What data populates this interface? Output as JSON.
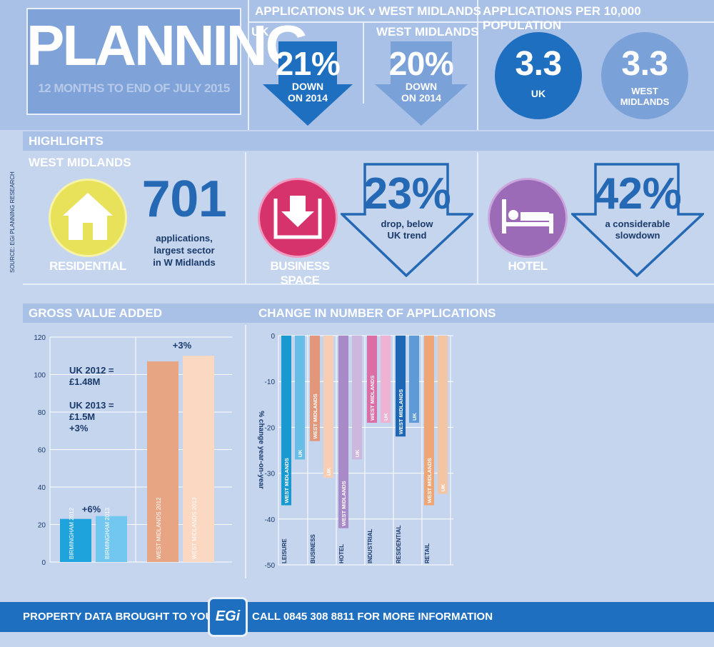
{
  "title": {
    "main": "PLANNING",
    "sub": "12 MONTHS TO END OF JULY 2015"
  },
  "applications_uk_v_wm": {
    "heading": "APPLICATIONS UK v WEST MIDLANDS",
    "uk": {
      "label": "UK",
      "value": "21%",
      "line1": "DOWN",
      "line2": "ON 2014"
    },
    "wm": {
      "label": "WEST MIDLANDS",
      "value": "20%",
      "line1": "DOWN",
      "line2": "ON 2014"
    }
  },
  "per_10000": {
    "heading": "APPLICATIONS PER 10,000 POPULATION",
    "uk": {
      "value": "3.3",
      "label": "UK"
    },
    "wm": {
      "value": "3.3",
      "label1": "WEST",
      "label2": "MIDLANDS"
    }
  },
  "highlights": {
    "heading": "HIGHLIGHTS",
    "region": "WEST MIDLANDS",
    "source": "SOURCE: EGi PLANNING RESEARCH",
    "residential": {
      "label": "RESIDENTIAL",
      "value": "701",
      "l1": "applications,",
      "l2": "largest sector",
      "l3": "in W Midlands"
    },
    "business": {
      "label": "BUSINESS SPACE",
      "value": "23%",
      "l1": "drop, below",
      "l2": "UK trend"
    },
    "hotel": {
      "label": "HOTEL",
      "value": "42%",
      "l1": "a considerable",
      "l2": "slowdown"
    }
  },
  "gva": {
    "heading": "GROSS VALUE ADDED",
    "notes": {
      "a1": "UK 2012 =",
      "a2": "£1.48M",
      "b1": "UK 2013 =",
      "b2": "£1.5M",
      "b3": "+3%"
    }
  },
  "change": {
    "heading": "CHANGE IN NUMBER OF APPLICATIONS",
    "ylabel": "% change year-on-year"
  },
  "footer": {
    "left": "PROPERTY DATA BROUGHT TO YOU BY",
    "logo": "EGi",
    "right": "CALL 0845 308 8811 FOR MORE INFORMATION"
  },
  "colors": {
    "accent": "#1e6fc0",
    "residential": "#e8e25a",
    "business": "#d6336c",
    "hotel": "#9b6bb8"
  },
  "chart_data": [
    {
      "type": "bar",
      "title": "GROSS VALUE ADDED",
      "ylim": [
        0,
        120
      ],
      "yticks": [
        0,
        20,
        40,
        60,
        80,
        100,
        120
      ],
      "bars": [
        {
          "label": "BIRMINGHAM 2012",
          "value": 23,
          "color": "#1ea3dc"
        },
        {
          "label": "BIRMINGHAM 2013",
          "value": 24.5,
          "color": "#72c7f0"
        },
        {
          "label": "WEST MIDLANDS 2012",
          "value": 107,
          "color": "#e8a584"
        },
        {
          "label": "WEST MIDLANDS 2013",
          "value": 110,
          "color": "#fbd8c2"
        }
      ],
      "annotations": [
        "+6%",
        "+3%"
      ]
    },
    {
      "type": "bar",
      "title": "CHANGE IN NUMBER OF APPLICATIONS",
      "ylabel": "% change year-on-year",
      "ylim": [
        -50,
        0
      ],
      "yticks": [
        0,
        -10,
        -20,
        -30,
        -40,
        -50
      ],
      "categories": [
        "LEISURE",
        "BUSINESS",
        "HOTEL",
        "INDUSTRIAL",
        "RESIDENTIAL",
        "RETAIL"
      ],
      "series": [
        {
          "name": "WEST MIDLANDS",
          "values": [
            -37,
            -23,
            -42,
            -19,
            -22,
            -37
          ]
        },
        {
          "name": "UK",
          "values": [
            -27,
            -31,
            -27,
            -19,
            -19,
            -34.5
          ]
        }
      ],
      "colors": [
        [
          "#1899d0",
          "#66bde6"
        ],
        [
          "#e2967a",
          "#f7cdb4"
        ],
        [
          "#a98ac8",
          "#cdb7dd"
        ],
        [
          "#db6ea6",
          "#eeb2d2"
        ],
        [
          "#1d67b5",
          "#5c9bd8"
        ],
        [
          "#eea677",
          "#f4c5a3"
        ]
      ]
    }
  ]
}
